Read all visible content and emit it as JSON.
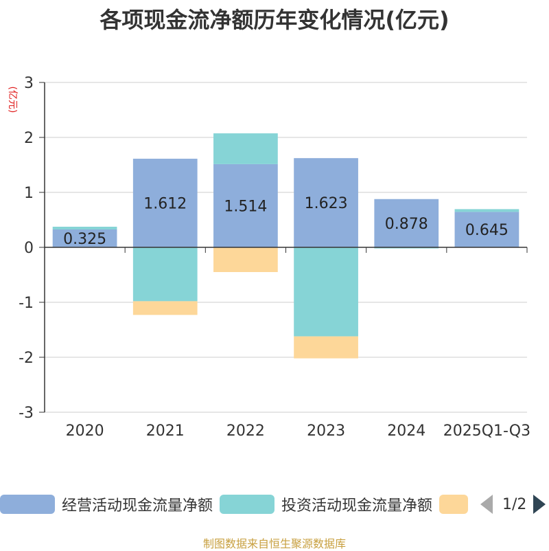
{
  "chart_data": {
    "type": "bar",
    "stacked": true,
    "title": "各项现金流净额历年变化情况(亿元)",
    "ylabel": "(亿元)",
    "categories": [
      "2020",
      "2021",
      "2022",
      "2023",
      "2024",
      "2025Q1-Q3"
    ],
    "ylim": [
      -3,
      3
    ],
    "yticks": [
      -3,
      -2,
      -1,
      0,
      1,
      2,
      3
    ],
    "grid": true,
    "legend_position": "bottom",
    "series": [
      {
        "name": "经营活动现金流量净额",
        "color": "#8eaedb",
        "values": [
          0.325,
          1.612,
          1.514,
          1.623,
          0.878,
          0.645
        ],
        "labels": [
          "0.325",
          "1.612",
          "1.514",
          "1.623",
          "0.878",
          "0.645"
        ]
      },
      {
        "name": "投资活动现金流量净额",
        "color": "#86d4d6",
        "values": [
          0.05,
          -0.98,
          0.56,
          -1.62,
          -0.02,
          0.05
        ]
      },
      {
        "name": "",
        "color": "#fdd799",
        "values": [
          0.0,
          -0.25,
          -0.45,
          -0.4,
          0.0,
          0.0
        ]
      }
    ]
  },
  "legend": {
    "page_indicator": "1/2"
  },
  "footer": {
    "source": "制图数据来自恒生聚源数据库"
  }
}
